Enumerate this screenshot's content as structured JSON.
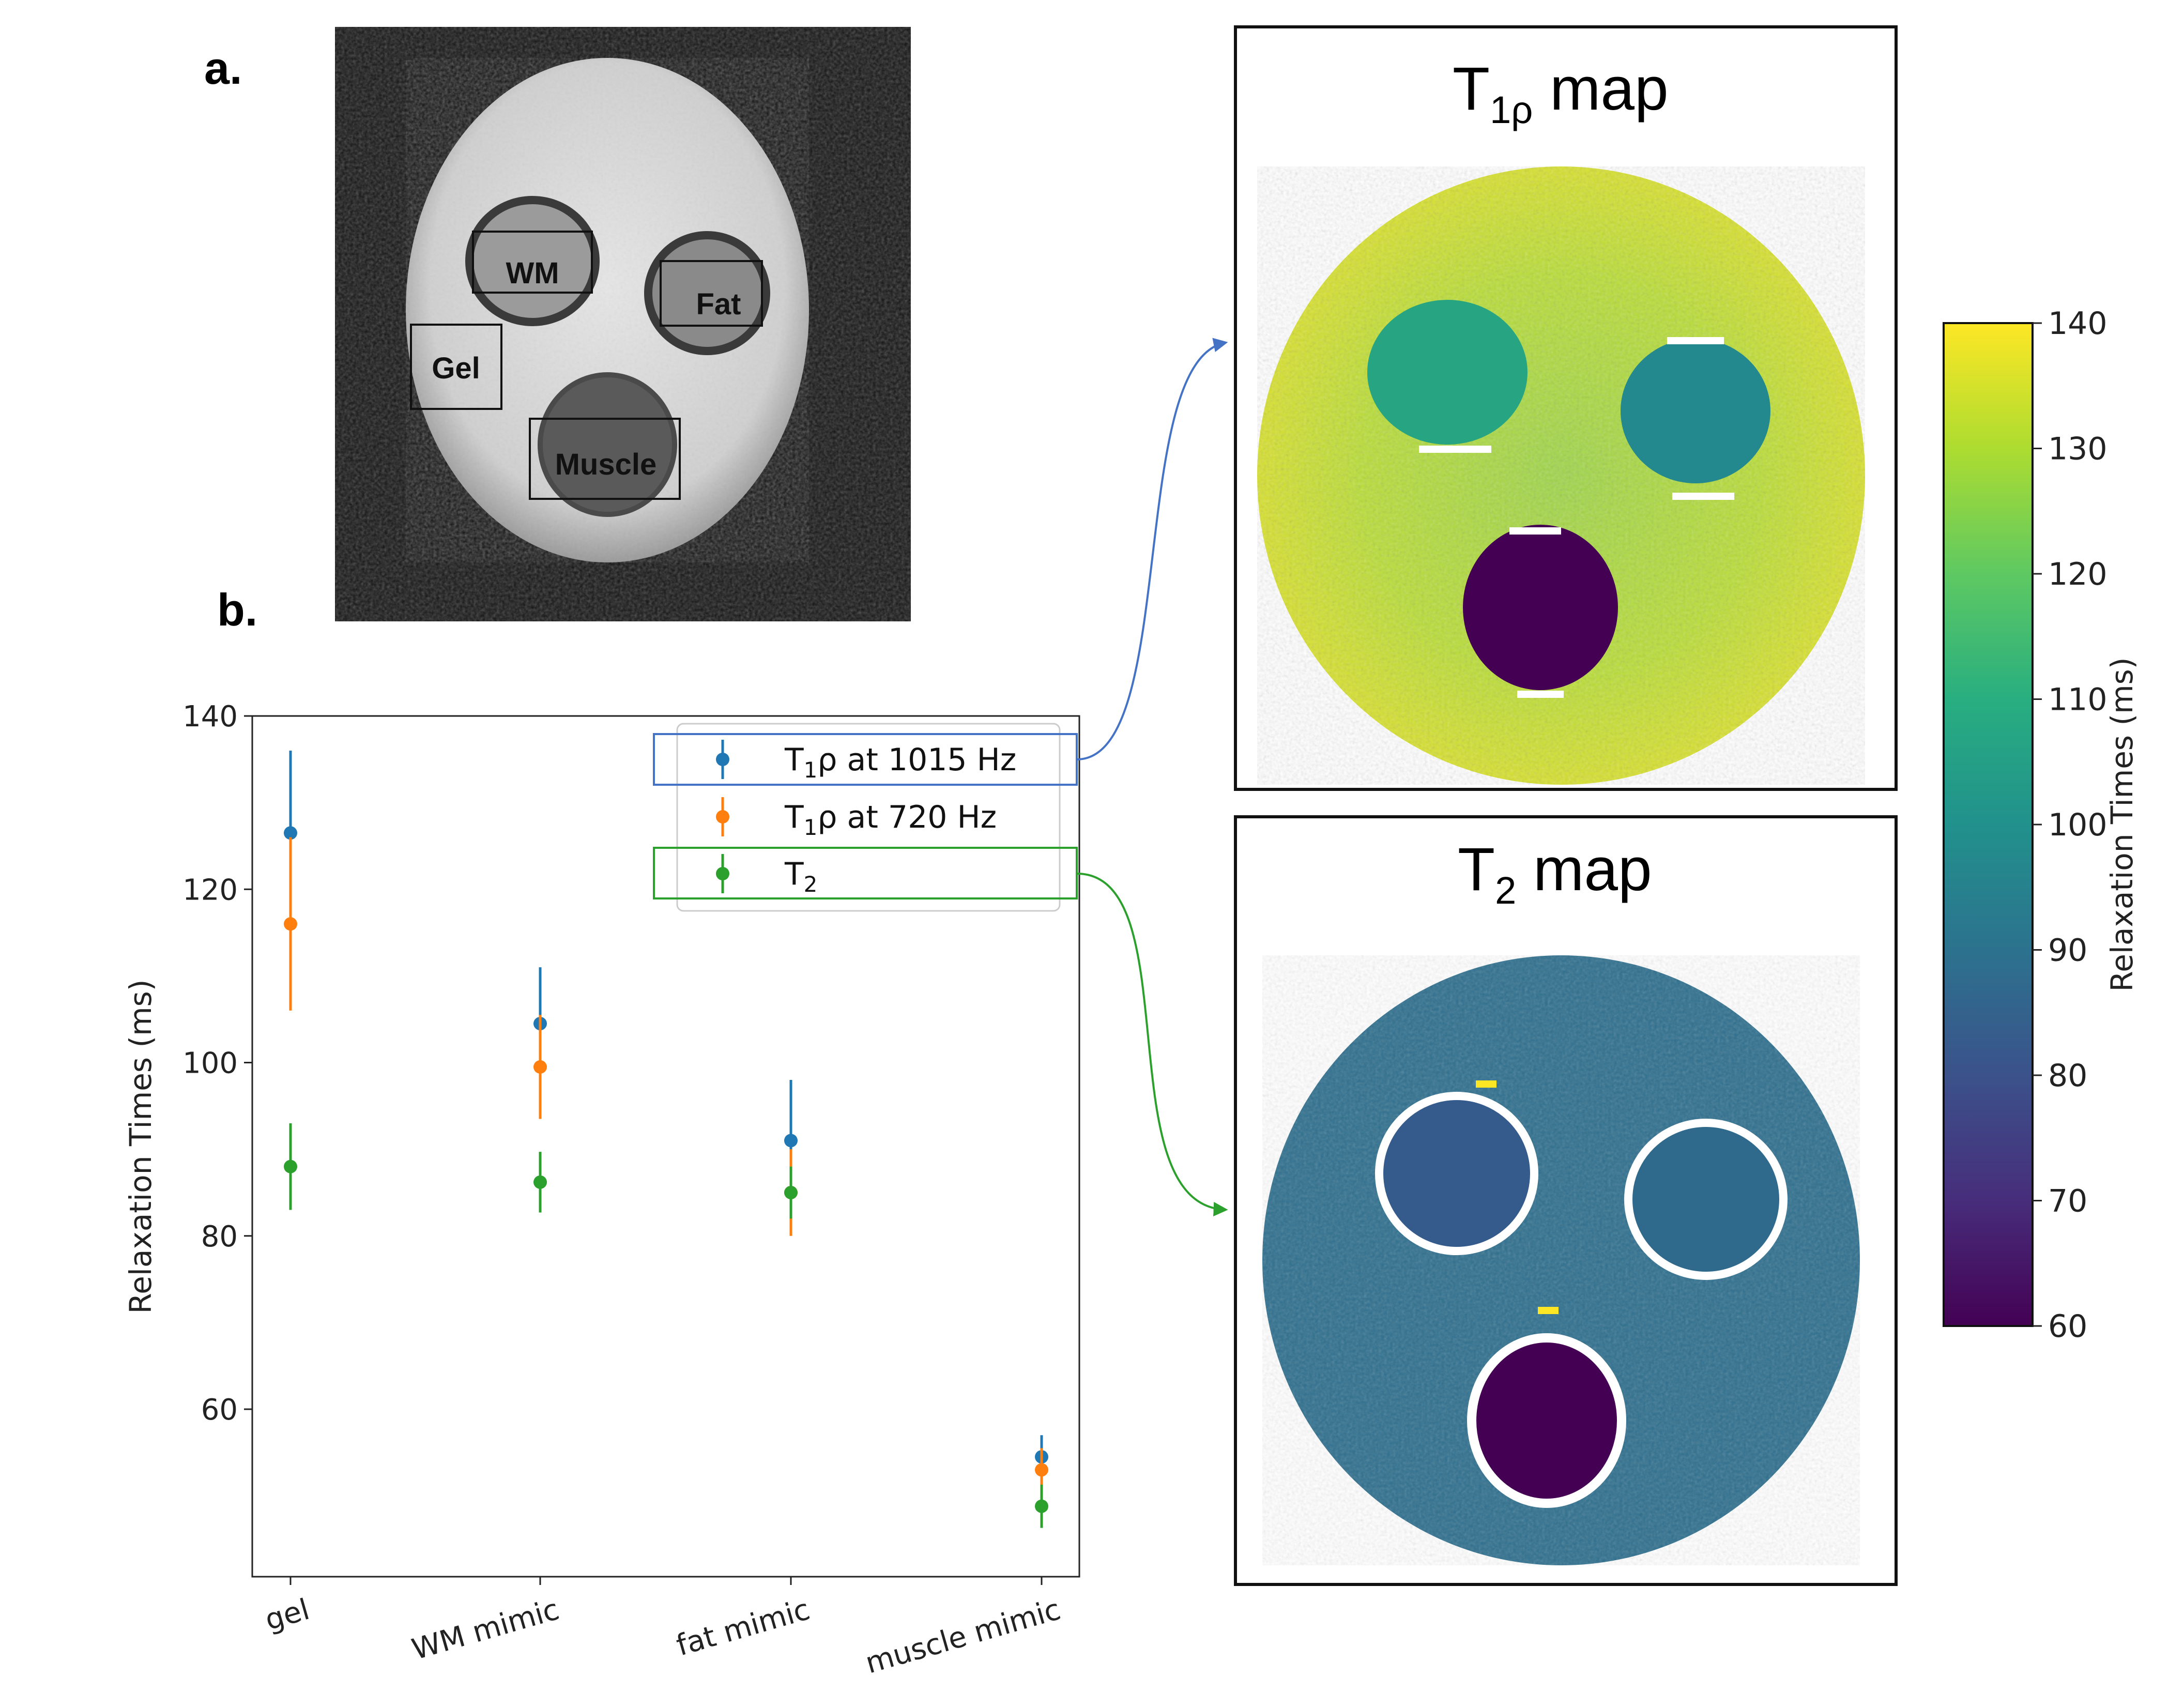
{
  "panels": {
    "a_label": "a.",
    "b_label": "b."
  },
  "roi_labels": {
    "wm": "WM",
    "fat": "Fat",
    "gel": "Gel",
    "muscle": "Muscle"
  },
  "maps": {
    "t1rho_title_main": "T",
    "t1rho_title_sub": "1ρ",
    "t1rho_title_rest": " map",
    "t2_title_main": "T",
    "t2_title_sub": "2",
    "t2_title_rest": " map"
  },
  "colorbar": {
    "label": "Relaxation Times (ms)",
    "ticks": [
      "140",
      "130",
      "120",
      "110",
      "100",
      "90",
      "80",
      "70",
      "60"
    ],
    "range": [
      60,
      140
    ]
  },
  "chart_data": {
    "type": "scatter",
    "title": "",
    "xlabel": "",
    "ylabel": "Relaxation Times (ms)",
    "categories": [
      "gel",
      "WM mimic",
      "fat mimic",
      "muscle mimic"
    ],
    "ylim": [
      42,
      140
    ],
    "yticks": [
      60,
      80,
      100,
      120,
      140
    ],
    "series": [
      {
        "name": "T1ρ at 1015 Hz",
        "legend_main": "T",
        "legend_sub": "1",
        "legend_rest": "ρ at 1015 Hz",
        "color": "#1f77b4",
        "values": [
          126.5,
          104.5,
          91.0,
          54.5
        ],
        "errors": [
          9.5,
          6.5,
          7.0,
          2.5
        ]
      },
      {
        "name": "T1ρ at 720 Hz",
        "legend_main": "T",
        "legend_sub": "1",
        "legend_rest": "ρ at 720 Hz",
        "color": "#ff7f0e",
        "values": [
          116.0,
          99.5,
          85.0,
          53.0
        ],
        "errors": [
          10.0,
          6.0,
          5.0,
          2.5
        ]
      },
      {
        "name": "T2",
        "legend_main": "T",
        "legend_sub": "2",
        "legend_rest": "",
        "color": "#2ca02c",
        "values": [
          88.0,
          86.2,
          85.0,
          48.8
        ],
        "errors": [
          5.0,
          3.5,
          3.0,
          2.5
        ]
      }
    ]
  },
  "colors": {
    "t1rho_box": "#4472c4",
    "t2_box": "#2ca02c",
    "viridis_low": "#440154",
    "viridis_mid": "#21918c",
    "viridis_high": "#fde725"
  }
}
